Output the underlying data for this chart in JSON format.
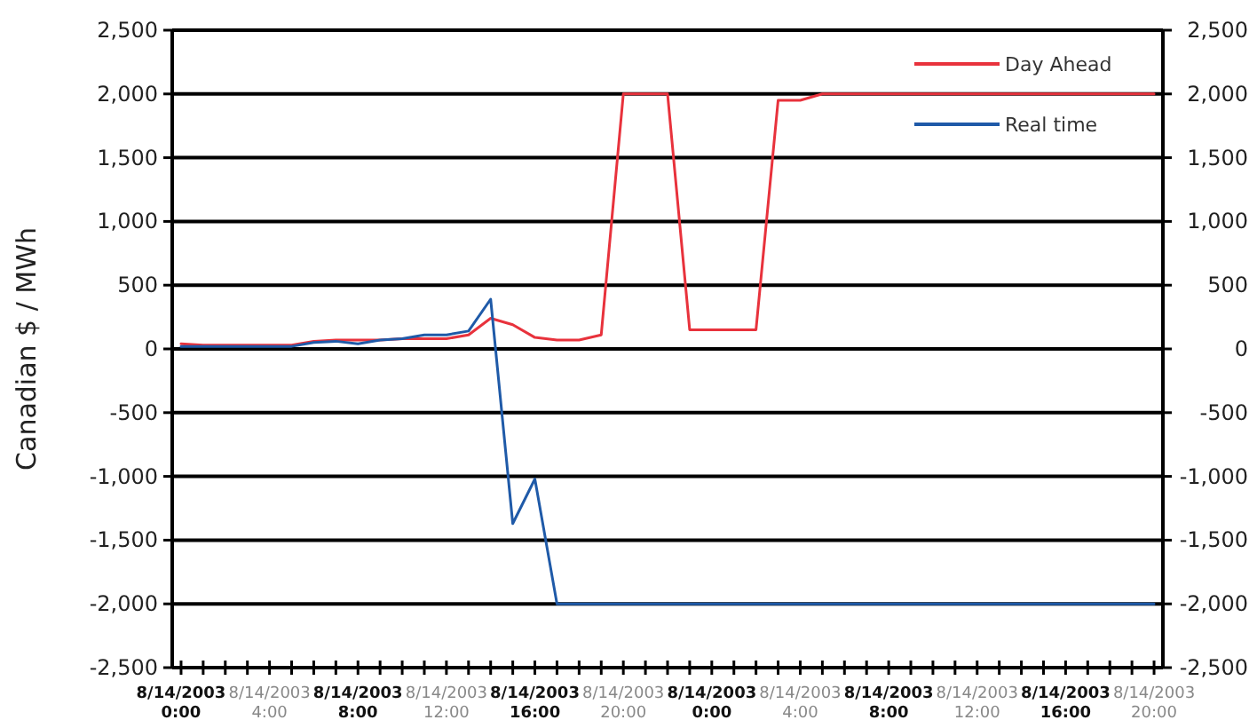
{
  "chart_data": {
    "type": "line",
    "ylabel": "Canadian $ / MWh",
    "categories": [
      "8/14/2003 0:00",
      null,
      null,
      null,
      "8/14/2003 4:00",
      null,
      null,
      null,
      "8/14/2003 8:00",
      null,
      null,
      null,
      "8/14/2003 12:00",
      null,
      null,
      null,
      "8/14/2003 16:00",
      null,
      null,
      null,
      "8/14/2003 20:00",
      null,
      null,
      null,
      "8/14/2003 0:00",
      null,
      null,
      null,
      "8/14/2003 4:00",
      null,
      null,
      null,
      "8/14/2003 8:00",
      null,
      null,
      null,
      "8/14/2003 12:00",
      null,
      null,
      null,
      "8/14/2003 16:00",
      null,
      null,
      null,
      "8/14/2003 20:00"
    ],
    "series": [
      {
        "name": "Day Ahead",
        "color": "#e8323c",
        "values": [
          40,
          30,
          30,
          30,
          30,
          30,
          60,
          70,
          70,
          70,
          80,
          80,
          80,
          110,
          240,
          190,
          90,
          70,
          70,
          110,
          2000,
          2000,
          2000,
          150,
          150,
          150,
          150,
          1950,
          1950,
          2000,
          2000,
          2000,
          2000,
          2000,
          2000,
          2000,
          2000,
          2000,
          2000,
          2000,
          2000,
          2000,
          2000,
          2000,
          2000
        ]
      },
      {
        "name": "Real time",
        "color": "#1f5aa8",
        "values": [
          20,
          20,
          20,
          20,
          20,
          20,
          50,
          60,
          40,
          70,
          80,
          110,
          110,
          140,
          390,
          -1370,
          -1020,
          -2000,
          -2000,
          -2000,
          -2000,
          -2000,
          -2000,
          -2000,
          -2000,
          -2000,
          -2000,
          -2000,
          -2000,
          -2000,
          -2000,
          -2000,
          -2000,
          -2000,
          -2000,
          -2000,
          -2000,
          -2000,
          -2000,
          -2000,
          -2000,
          -2000,
          -2000,
          -2000,
          -2000
        ]
      }
    ],
    "ylim": [
      -2500,
      2500
    ],
    "yticks": [
      {
        "value": -2500,
        "label": "-2,500"
      },
      {
        "value": -2000,
        "label": "-2,000"
      },
      {
        "value": -1500,
        "label": "-1,500"
      },
      {
        "value": -1000,
        "label": "-1,000"
      },
      {
        "value": -500,
        "label": "-500"
      },
      {
        "value": 0,
        "label": "0"
      },
      {
        "value": 500,
        "label": "500"
      },
      {
        "value": 1000,
        "label": "1,000"
      },
      {
        "value": 1500,
        "label": "1,500"
      },
      {
        "value": 2000,
        "label": "2,000"
      },
      {
        "value": 2500,
        "label": "2,500"
      }
    ],
    "y2lim": [
      -2500,
      2500
    ],
    "y2ticks": [
      {
        "value": -2500,
        "label": "-2,500"
      },
      {
        "value": -2000,
        "label": "-2,000"
      },
      {
        "value": -1500,
        "label": "-1,500"
      },
      {
        "value": -1000,
        "label": "-1,000"
      },
      {
        "value": -500,
        "label": "-500"
      },
      {
        "value": 0,
        "label": "0"
      },
      {
        "value": 500,
        "label": "500"
      },
      {
        "value": 1000,
        "label": "1,000"
      },
      {
        "value": 1500,
        "label": "1,500"
      },
      {
        "value": 2000,
        "label": "2,000"
      },
      {
        "value": 2500,
        "label": "2,500"
      }
    ],
    "grid": "y",
    "legend": "top right",
    "marker": "none",
    "line_style": "solid"
  }
}
